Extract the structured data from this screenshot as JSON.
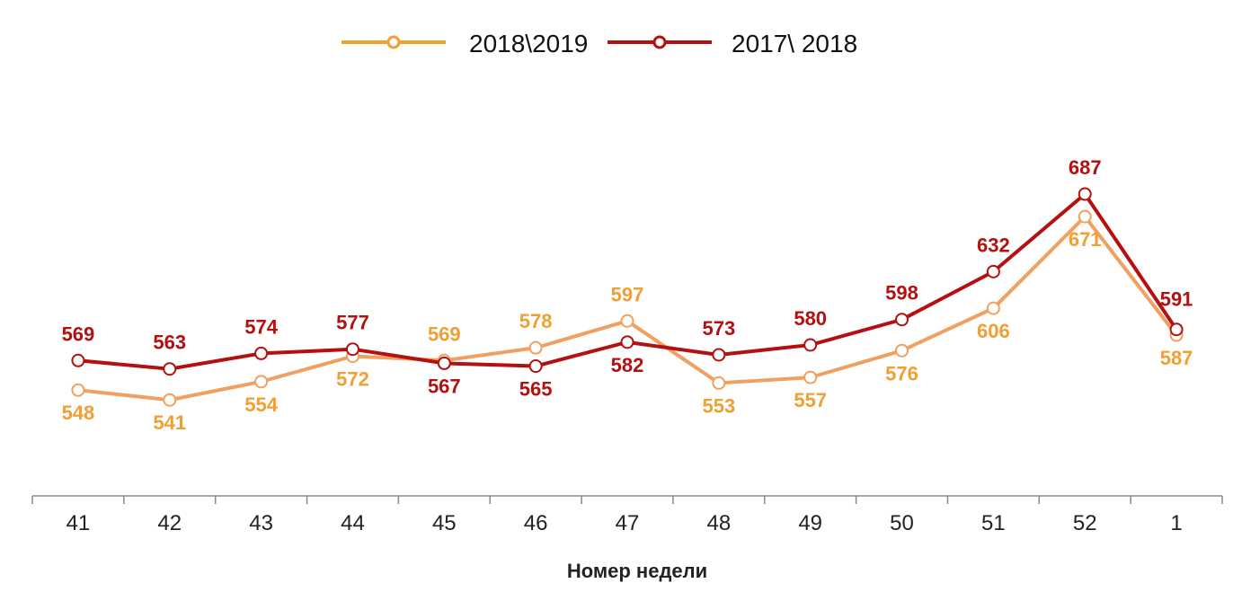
{
  "chart_data": {
    "type": "line",
    "title": "",
    "xlabel": "Номер недели",
    "ylabel": "",
    "categories": [
      "41",
      "42",
      "43",
      "44",
      "45",
      "46",
      "47",
      "48",
      "49",
      "50",
      "51",
      "52",
      "1"
    ],
    "ylim": [
      500,
      700
    ],
    "grid": false,
    "legend": "top-center",
    "series": [
      {
        "name": "2018\\2019",
        "color": "#f0a030",
        "line_color": "#f0a060",
        "values": [
          548,
          541,
          554,
          572,
          569,
          578,
          597,
          553,
          557,
          576,
          606,
          671,
          587
        ],
        "label_color": "#f0a030"
      },
      {
        "name": "2017\\ 2018",
        "color": "#b51010",
        "line_color": "#b51010",
        "values": [
          569,
          563,
          574,
          577,
          567,
          565,
          582,
          573,
          580,
          598,
          632,
          687,
          591
        ],
        "label_color": "#b51010"
      }
    ]
  }
}
